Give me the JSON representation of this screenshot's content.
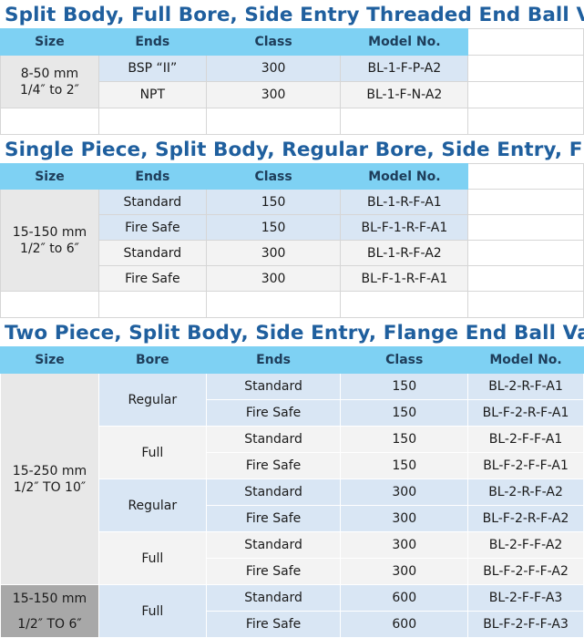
{
  "sections": [
    {
      "title": "Split Body, Full Bore, Side Entry Threaded End Ball Valve",
      "headers": [
        "Size",
        "Ends",
        "Class",
        "Model No."
      ],
      "size": [
        "8-50 mm",
        "1/4″ to 2″"
      ],
      "rows": [
        {
          "ends": "BSP “II”",
          "class": "300",
          "model": "BL-1-F-P-A2"
        },
        {
          "ends": "NPT",
          "class": "300",
          "model": "BL-1-F-N-A2"
        }
      ]
    },
    {
      "title": "Single Piece, Split Body, Regular Bore, Side Entry, Flange End Ball Valve",
      "headers": [
        "Size",
        "Ends",
        "Class",
        "Model No."
      ],
      "size": [
        "15-150 mm",
        "1/2″ to 6″"
      ],
      "rows": [
        {
          "ends": "Standard",
          "class": "150",
          "model": "BL-1-R-F-A1"
        },
        {
          "ends": "Fire Safe",
          "class": "150",
          "model": "BL-F-1-R-F-A1"
        },
        {
          "ends": "Standard",
          "class": "300",
          "model": "BL-1-R-F-A2"
        },
        {
          "ends": "Fire Safe",
          "class": "300",
          "model": "BL-F-1-R-F-A1"
        }
      ]
    },
    {
      "title": "Two Piece, Split Body, Side Entry, Flange End Ball Valve",
      "headers": [
        "Size",
        "Bore",
        "Ends",
        "Class",
        "Model No."
      ],
      "size_a": [
        "15-250 mm",
        "1/2″ TO 10″"
      ],
      "size_b": [
        "15-150 mm",
        "1/2″ TO 6″"
      ],
      "bores": [
        "Regular",
        "Full",
        "Regular",
        "Full",
        "Full"
      ],
      "rows": [
        {
          "ends": "Standard",
          "class": "150",
          "model": "BL-2-R-F-A1"
        },
        {
          "ends": "Fire Safe",
          "class": "150",
          "model": "BL-F-2-R-F-A1"
        },
        {
          "ends": "Standard",
          "class": "150",
          "model": "BL-2-F-F-A1"
        },
        {
          "ends": "Fire Safe",
          "class": "150",
          "model": "BL-F-2-F-F-A1"
        },
        {
          "ends": "Standard",
          "class": "300",
          "model": "BL-2-R-F-A2"
        },
        {
          "ends": "Fire Safe",
          "class": "300",
          "model": "BL-F-2-R-F-A2"
        },
        {
          "ends": "Standard",
          "class": "300",
          "model": "BL-2-F-F-A2"
        },
        {
          "ends": "Fire Safe",
          "class": "300",
          "model": "BL-F-2-F-F-A2"
        },
        {
          "ends": "Standard",
          "class": "600",
          "model": "BL-2-F-F-A3"
        },
        {
          "ends": "Fire Safe",
          "class": "600",
          "model": "BL-F-2-F-F-A3"
        }
      ]
    }
  ]
}
